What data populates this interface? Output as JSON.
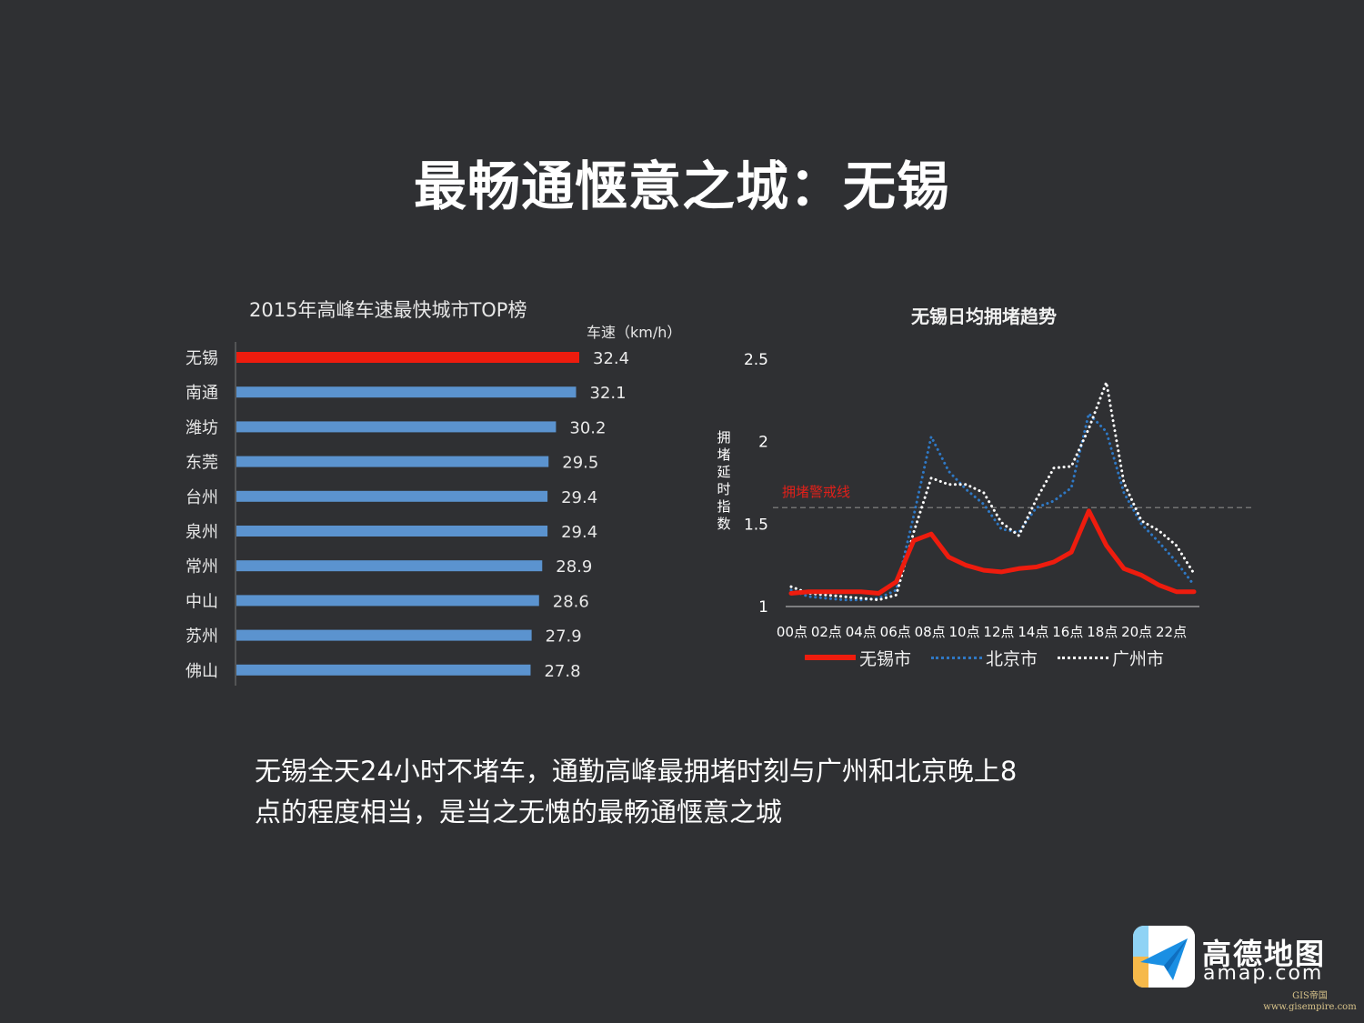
{
  "page": {
    "title": "最畅通惬意之城：无锡"
  },
  "caption": {
    "line1": "无锡全天24小时不堵车，通勤高峰最拥堵时刻与广州和北京晚上8",
    "line2": "点的程度相当，是当之无愧的最畅通惬意之城"
  },
  "brand": {
    "name_cn": "高德地图",
    "name_en": "amap.com"
  },
  "watermark": {
    "line1": "GIS帝国",
    "line2": "www.gisempire.com"
  },
  "chart_data": [
    {
      "type": "bar",
      "orientation": "horizontal",
      "title": "2015年高峰车速最快城市TOP榜",
      "unit_label": "车速（km/h）",
      "categories": [
        "无锡",
        "南通",
        "潍坊",
        "东莞",
        "台州",
        "泉州",
        "常州",
        "中山",
        "苏州",
        "佛山"
      ],
      "values": [
        32.4,
        32.1,
        30.2,
        29.5,
        29.4,
        29.4,
        28.9,
        28.6,
        27.9,
        27.8
      ],
      "value_labels": [
        "32.4",
        "32.1",
        "30.2",
        "29.5",
        "29.4",
        "29.4",
        "28.9",
        "28.6",
        "27.9",
        "27.8"
      ],
      "highlight_index": 0,
      "colors": {
        "highlight": "#ee1c0e",
        "default": "#5b93cf",
        "label": "#e8e8e8"
      }
    },
    {
      "type": "line",
      "title": "无锡日均拥堵趋势",
      "ylabel": "拥堵延时指数",
      "yticks": [
        "1",
        "1.5",
        "2",
        "2.5"
      ],
      "ylim": [
        1,
        2.5
      ],
      "xticks": [
        "00点",
        "02点",
        "04点",
        "06点",
        "08点",
        "10点",
        "12点",
        "14点",
        "16点",
        "18点",
        "20点",
        "22点"
      ],
      "xlim": [
        0,
        23
      ],
      "threshold": {
        "label": "拥堵警戒线",
        "value": 1.6,
        "color": "#e0201a"
      },
      "series": [
        {
          "name": "无锡市",
          "color": "#ee1c0e",
          "style": "solid",
          "x": [
            0,
            1,
            2,
            3,
            4,
            5,
            6,
            7,
            8,
            9,
            10,
            11,
            12,
            13,
            14,
            15,
            16,
            17,
            18,
            19,
            20,
            21,
            22,
            23
          ],
          "values": [
            1.08,
            1.09,
            1.09,
            1.09,
            1.09,
            1.08,
            1.15,
            1.4,
            1.44,
            1.3,
            1.25,
            1.22,
            1.21,
            1.23,
            1.24,
            1.27,
            1.33,
            1.58,
            1.37,
            1.23,
            1.19,
            1.13,
            1.09,
            1.09
          ]
        },
        {
          "name": "北京市",
          "color": "#2f78c4",
          "style": "dotted",
          "x": [
            0,
            1,
            2,
            3,
            4,
            5,
            6,
            7,
            8,
            9,
            10,
            11,
            12,
            13,
            14,
            15,
            16,
            17,
            18,
            19,
            20,
            21,
            22,
            23
          ],
          "values": [
            1.1,
            1.06,
            1.05,
            1.04,
            1.04,
            1.05,
            1.1,
            1.55,
            2.03,
            1.82,
            1.71,
            1.62,
            1.47,
            1.45,
            1.6,
            1.64,
            1.72,
            2.17,
            2.06,
            1.69,
            1.5,
            1.39,
            1.27,
            1.13
          ]
        },
        {
          "name": "广州市",
          "color": "#ffffff",
          "style": "dotted",
          "x": [
            0,
            1,
            2,
            3,
            4,
            5,
            6,
            7,
            8,
            9,
            10,
            11,
            12,
            13,
            14,
            15,
            16,
            17,
            18,
            19,
            20,
            21,
            22,
            23
          ],
          "values": [
            1.12,
            1.08,
            1.07,
            1.06,
            1.05,
            1.04,
            1.07,
            1.45,
            1.78,
            1.74,
            1.74,
            1.69,
            1.51,
            1.43,
            1.65,
            1.84,
            1.85,
            2.08,
            2.36,
            1.75,
            1.52,
            1.46,
            1.37,
            1.2
          ]
        }
      ]
    }
  ]
}
